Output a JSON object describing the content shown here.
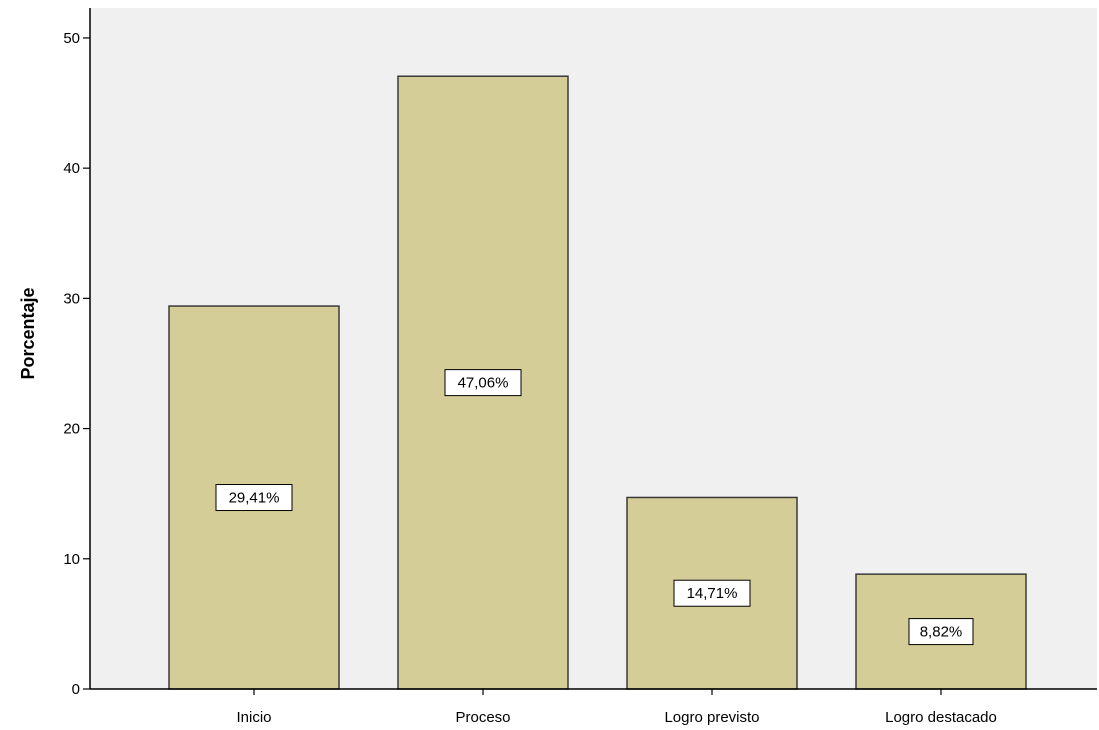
{
  "chart_data": {
    "type": "bar",
    "title": "",
    "xlabel": "",
    "ylabel": "Porcentaje",
    "categories": [
      "Inicio",
      "Proceso",
      "Logro previsto",
      "Logro destacado"
    ],
    "values": [
      29.41,
      47.06,
      14.71,
      8.82
    ],
    "data_labels": [
      "29,41%",
      "47,06%",
      "14,71%",
      "8,82%"
    ],
    "ylim": [
      0,
      52.3
    ],
    "yticks": [
      0,
      10,
      20,
      30,
      40,
      50
    ],
    "grid": false,
    "legend": "none",
    "colors": {
      "plot_background": "#f0f0f0",
      "bar_fill": "#d4cd97",
      "bar_stroke": "#3a3a3a",
      "axis": "#000000",
      "label_box": "#ffffff"
    }
  }
}
